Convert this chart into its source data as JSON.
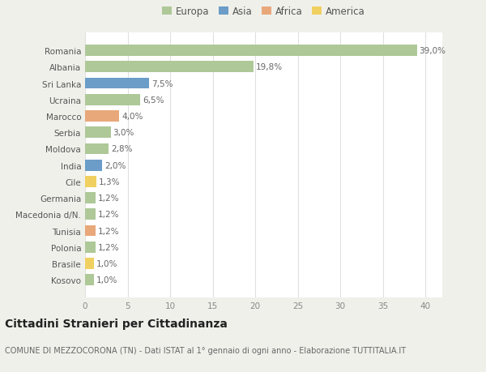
{
  "countries": [
    "Romania",
    "Albania",
    "Sri Lanka",
    "Ucraina",
    "Marocco",
    "Serbia",
    "Moldova",
    "India",
    "Cile",
    "Germania",
    "Macedonia d/N.",
    "Tunisia",
    "Polonia",
    "Brasile",
    "Kosovo"
  ],
  "values": [
    39.0,
    19.8,
    7.5,
    6.5,
    4.0,
    3.0,
    2.8,
    2.0,
    1.3,
    1.2,
    1.2,
    1.2,
    1.2,
    1.0,
    1.0
  ],
  "labels": [
    "39,0%",
    "19,8%",
    "7,5%",
    "6,5%",
    "4,0%",
    "3,0%",
    "2,8%",
    "2,0%",
    "1,3%",
    "1,2%",
    "1,2%",
    "1,2%",
    "1,2%",
    "1,0%",
    "1,0%"
  ],
  "continents": [
    "Europa",
    "Europa",
    "Asia",
    "Europa",
    "Africa",
    "Europa",
    "Europa",
    "Asia",
    "America",
    "Europa",
    "Europa",
    "Africa",
    "Europa",
    "America",
    "Europa"
  ],
  "continent_colors": {
    "Europa": "#aec898",
    "Asia": "#6b9dc8",
    "Africa": "#e8a87a",
    "America": "#f0d060"
  },
  "legend_order": [
    "Europa",
    "Asia",
    "Africa",
    "America"
  ],
  "title": "Cittadini Stranieri per Cittadinanza",
  "subtitle": "COMUNE DI MEZZOCORONA (TN) - Dati ISTAT al 1° gennaio di ogni anno - Elaborazione TUTTITALIA.IT",
  "xlim": [
    0,
    42
  ],
  "xticks": [
    0,
    5,
    10,
    15,
    20,
    25,
    30,
    35,
    40
  ],
  "outer_bg": "#f0f0eb",
  "chart_bg": "#ffffff",
  "grid_color": "#e0e0e0",
  "title_fontsize": 10,
  "subtitle_fontsize": 7,
  "label_fontsize": 7.5,
  "tick_fontsize": 7.5,
  "legend_fontsize": 8.5
}
